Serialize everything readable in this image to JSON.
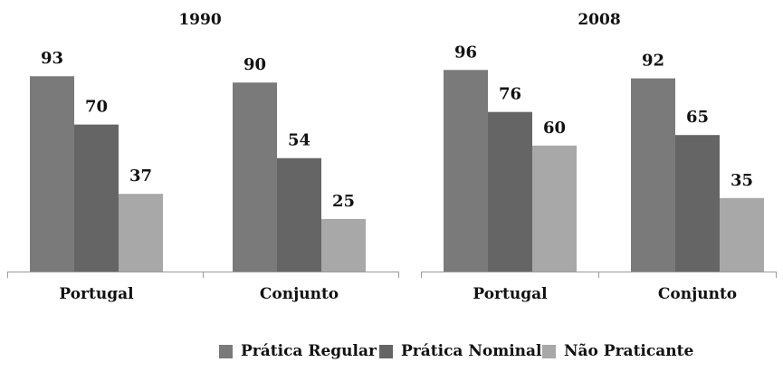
{
  "colors": {
    "Prática Regular": "#7a7a7a",
    "Prática Nominal": "#656565",
    "Não Praticante": "#a8a8a8"
  },
  "legend": [
    {
      "label": "Prática Regular"
    },
    {
      "label": "Prática Nominal"
    },
    {
      "label": "Não Praticante"
    }
  ],
  "chart_data": [
    {
      "type": "bar",
      "title": "1990",
      "categories": [
        "Portugal",
        "Conjunto"
      ],
      "series": [
        {
          "name": "Prática Regular",
          "values": [
            93,
            90
          ]
        },
        {
          "name": "Prática Nominal",
          "values": [
            70,
            54
          ]
        },
        {
          "name": "Não Praticante",
          "values": [
            37,
            25
          ]
        }
      ],
      "ylim": [
        0,
        100
      ],
      "grid": false,
      "legend_position": "bottom"
    },
    {
      "type": "bar",
      "title": "2008",
      "categories": [
        "Portugal",
        "Conjunto"
      ],
      "series": [
        {
          "name": "Prática Regular",
          "values": [
            96,
            92
          ]
        },
        {
          "name": "Prática Nominal",
          "values": [
            76,
            65
          ]
        },
        {
          "name": "Não Praticante",
          "values": [
            60,
            35
          ]
        }
      ],
      "ylim": [
        0,
        100
      ],
      "grid": false,
      "legend_position": "bottom"
    }
  ]
}
